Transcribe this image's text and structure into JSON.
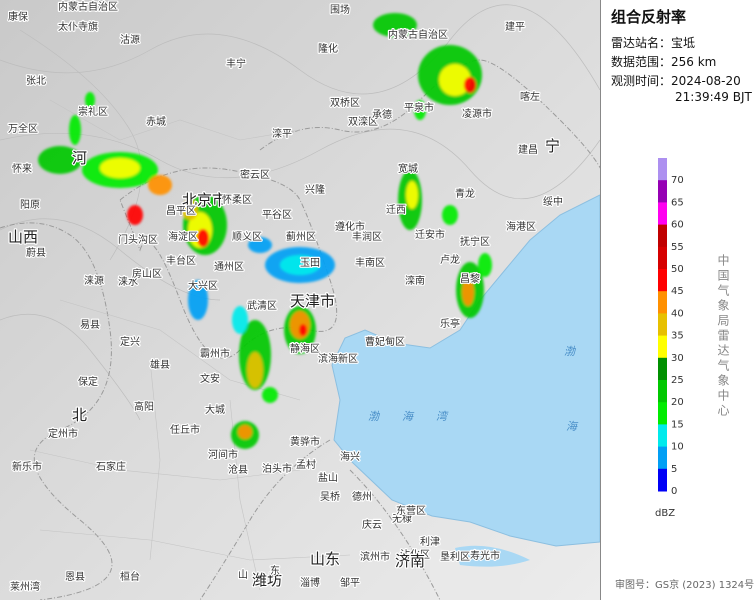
{
  "panel": {
    "title": "组合反射率",
    "station_label": "雷达站名：",
    "station": "宝坻",
    "range_label": "数据范围：",
    "range": "256 km",
    "time_label": "观测时间：",
    "date": "2024-08-20",
    "time": "21:39:49 BJT"
  },
  "legend": {
    "ticks": [
      70,
      65,
      60,
      55,
      50,
      45,
      40,
      35,
      30,
      25,
      20,
      15,
      10,
      5,
      0
    ],
    "colors": [
      "#ad90f0",
      "#9600b4",
      "#ff00f0",
      "#c00000",
      "#d60000",
      "#ff0000",
      "#ff9000",
      "#e7c000",
      "#ffff00",
      "#009000",
      "#00c800",
      "#00ec00",
      "#00eaec",
      "#019ff4",
      "#0000f6"
    ],
    "unit": "dBZ"
  },
  "credit": "中国气象局雷达气象中心",
  "approval": "审图号：GS京 (2023) 1324号",
  "map": {
    "labels": [
      "康保",
      "内蒙古自治区",
      "太仆寺旗",
      "沽源",
      "围场",
      "隆化",
      "丰宁",
      "内蒙古自治区",
      "建平",
      "张北",
      "崇礼区",
      "赤城",
      "滦平",
      "双桥区",
      "双滦区",
      "承德",
      "平泉市",
      "凌源市",
      "喀左",
      "建昌",
      "宁",
      "万全区",
      "河",
      "怀来",
      "密云区",
      "兴隆",
      "宽城",
      "青龙",
      "绥中",
      "北京市",
      "阳原",
      "蔚县",
      "山西",
      "怀柔区",
      "昌平区",
      "平谷区",
      "顺义区",
      "遵化市",
      "迁西",
      "抚宁区",
      "海港区",
      "门头沟区",
      "海淀区",
      "卢龙",
      "通州区",
      "丰台区",
      "蓟州区",
      "玉田",
      "丰润区",
      "丰南区",
      "迁安市",
      "昌黎",
      "涞源",
      "涞水",
      "房山区",
      "大兴区",
      "武清区",
      "天津市",
      "滦南",
      "乐亭",
      "曹妃甸区",
      "易县",
      "定兴",
      "雄县",
      "霸州市",
      "文安",
      "静海区",
      "滨海新区",
      "定州市",
      "高阳",
      "任丘市",
      "大城",
      "保定",
      "北",
      "河间市",
      "黄骅市",
      "沧县",
      "新乐市",
      "石家庄",
      "泊头市",
      "孟村",
      "海兴",
      "盐山",
      "吴桥",
      "德州",
      "庆云",
      "无棣",
      "沾化区",
      "滨州市",
      "东营区",
      "利津",
      "垦利区",
      "寿光市",
      "潍坊",
      "莱州湾",
      "山东",
      "济南",
      "山",
      "东",
      "淄博",
      "邹平",
      "恩县",
      "桓台"
    ],
    "sea": [
      "渤",
      "海",
      "湾",
      "渤",
      "海"
    ]
  }
}
